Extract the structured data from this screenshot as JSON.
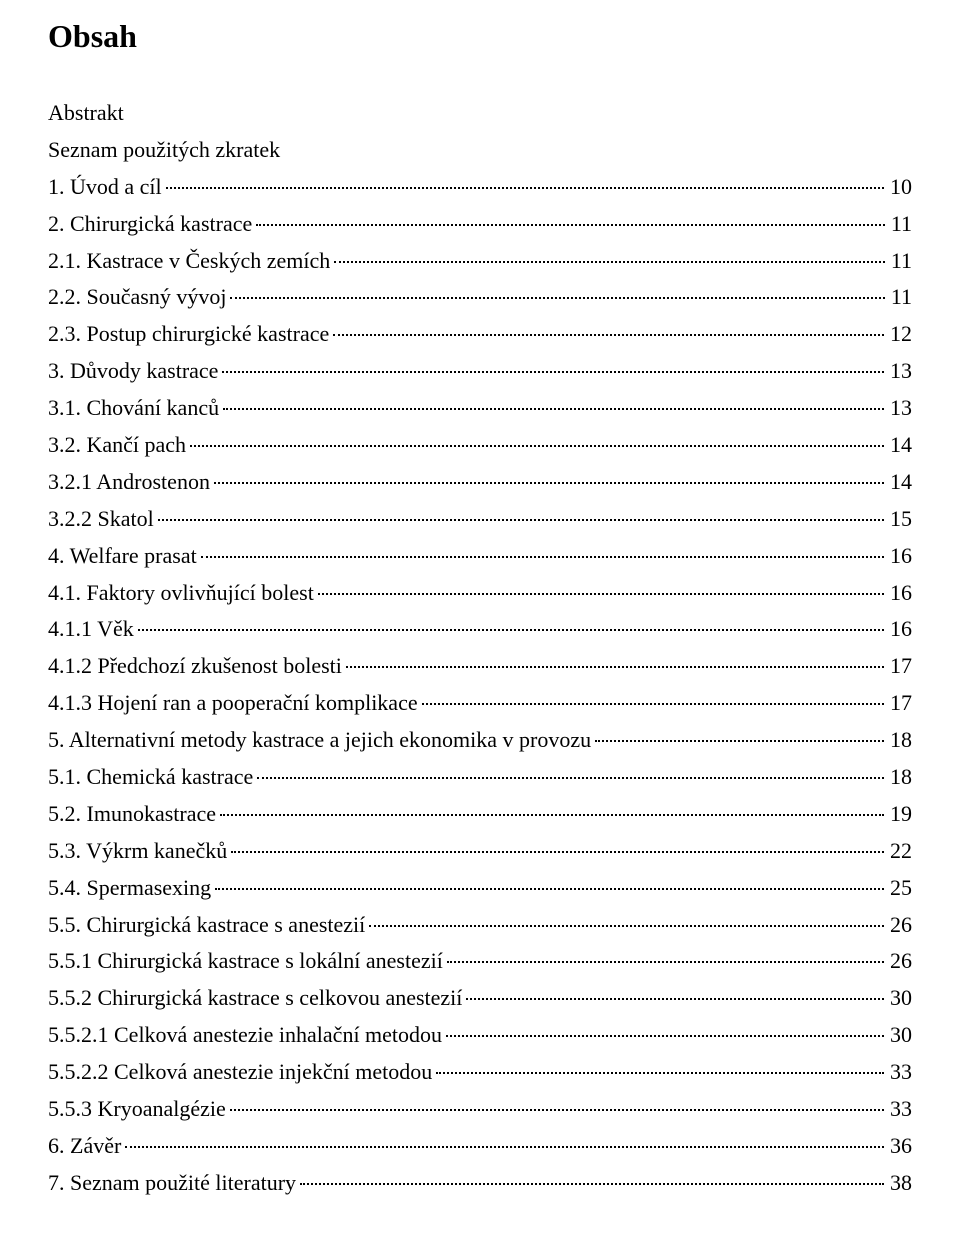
{
  "title": "Obsah",
  "preamble": [
    "Abstrakt",
    "Seznam použitých zkratek"
  ],
  "toc": [
    {
      "label": "1. Úvod a cíl",
      "page": "10"
    },
    {
      "label": "2. Chirurgická kastrace",
      "page": "11"
    },
    {
      "label": "2.1. Kastrace v Českých zemích",
      "page": "11"
    },
    {
      "label": "2.2. Současný vývoj",
      "page": "11"
    },
    {
      "label": "2.3. Postup chirurgické kastrace",
      "page": "12"
    },
    {
      "label": "3. Důvody kastrace",
      "page": "13"
    },
    {
      "label": "3.1. Chování kanců",
      "page": "13"
    },
    {
      "label": "3.2. Kančí pach",
      "page": "14"
    },
    {
      "label": "3.2.1 Androstenon",
      "page": "14"
    },
    {
      "label": "3.2.2 Skatol",
      "page": "15"
    },
    {
      "label": "4. Welfare prasat",
      "page": "16"
    },
    {
      "label": "4.1. Faktory ovlivňující bolest",
      "page": "16"
    },
    {
      "label": "4.1.1 Věk",
      "page": "16"
    },
    {
      "label": "4.1.2 Předchozí zkušenost bolesti",
      "page": "17"
    },
    {
      "label": "4.1.3 Hojení ran a pooperační komplikace",
      "page": "17"
    },
    {
      "label": "5. Alternativní metody kastrace a jejich ekonomika v provozu",
      "page": "18"
    },
    {
      "label": "5.1. Chemická kastrace",
      "page": "18"
    },
    {
      "label": "5.2. Imunokastrace",
      "page": "19"
    },
    {
      "label": "5.3. Výkrm kanečků",
      "page": "22"
    },
    {
      "label": "5.4. Spermasexing",
      "page": "25"
    },
    {
      "label": "5.5. Chirurgická kastrace s anestezií",
      "page": "26"
    },
    {
      "label": "5.5.1 Chirurgická kastrace s lokální anestezií",
      "page": "26"
    },
    {
      "label": "5.5.2 Chirurgická kastrace s celkovou anestezií",
      "page": "30"
    },
    {
      "label": "5.5.2.1 Celková anestezie inhalační metodou",
      "page": "30"
    },
    {
      "label": "5.5.2.2 Celková anestezie injekční metodou",
      "page": "33"
    },
    {
      "label": "5.5.3 Kryoanalgézie",
      "page": "33"
    },
    {
      "label": "6. Závěr",
      "page": "36"
    },
    {
      "label": "7. Seznam použité literatury",
      "page": "38"
    }
  ]
}
